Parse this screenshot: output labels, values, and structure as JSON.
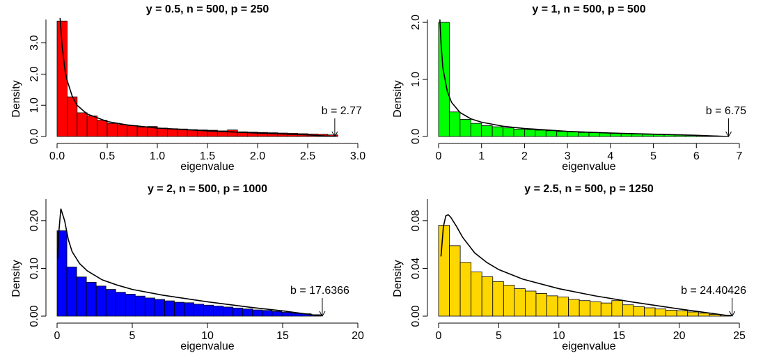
{
  "chart_data": [
    {
      "type": "histogram",
      "title": "y = 0.5, n = 500, p = 250",
      "xlabel": "eigenvalue",
      "ylabel": "Density",
      "color": "#ff0000",
      "bins": [
        0,
        0.1,
        0.2,
        0.3,
        0.4,
        0.5,
        0.6,
        0.7,
        0.8,
        0.9,
        1.0,
        1.1,
        1.2,
        1.3,
        1.4,
        1.5,
        1.6,
        1.7,
        1.8,
        1.9,
        2.0,
        2.1,
        2.2,
        2.3,
        2.4,
        2.5,
        2.6,
        2.7,
        2.8
      ],
      "values": [
        3.7,
        1.27,
        0.76,
        0.66,
        0.52,
        0.42,
        0.38,
        0.35,
        0.3,
        0.32,
        0.27,
        0.25,
        0.24,
        0.22,
        0.21,
        0.2,
        0.18,
        0.21,
        0.15,
        0.14,
        0.13,
        0.12,
        0.11,
        0.1,
        0.09,
        0.08,
        0.07,
        0.05
      ],
      "curve": {
        "x": [
          0.03,
          0.05,
          0.08,
          0.1,
          0.15,
          0.2,
          0.3,
          0.5,
          0.7,
          1.0,
          1.5,
          2.0,
          2.5,
          2.77
        ],
        "values": [
          3.8,
          2.9,
          2.1,
          1.8,
          1.3,
          1.0,
          0.72,
          0.48,
          0.37,
          0.27,
          0.18,
          0.11,
          0.05,
          0.0
        ]
      },
      "annotation": {
        "text": "b = 2.77",
        "x": 2.77
      },
      "xlim": [
        0,
        3
      ],
      "ylim": [
        0,
        3.75
      ],
      "xticks": [
        {
          "value": 0,
          "label": "0.0"
        },
        {
          "value": 0.5,
          "label": "0.5"
        },
        {
          "value": 1,
          "label": "1.0"
        },
        {
          "value": 1.5,
          "label": "1.5"
        },
        {
          "value": 2,
          "label": "2.0"
        },
        {
          "value": 2.5,
          "label": "2.5"
        },
        {
          "value": 3,
          "label": "3.0"
        }
      ],
      "yticks": [
        {
          "value": 0,
          "label": "0.0"
        },
        {
          "value": 1,
          "label": "1.0"
        },
        {
          "value": 2,
          "label": "2.0"
        },
        {
          "value": 3,
          "label": "3.0"
        }
      ]
    },
    {
      "type": "histogram",
      "title": "y = 1, n = 500, p = 500",
      "xlabel": "eigenvalue",
      "ylabel": "Density",
      "color": "#00ff00",
      "bins": [
        0,
        0.25,
        0.5,
        0.75,
        1,
        1.25,
        1.5,
        1.75,
        2,
        2.25,
        2.5,
        2.75,
        3,
        3.25,
        3.5,
        3.75,
        4,
        4.25,
        4.5,
        4.75,
        5,
        5.25,
        5.5,
        5.75,
        6,
        6.25,
        6.5,
        6.75
      ],
      "values": [
        2.0,
        0.43,
        0.3,
        0.23,
        0.19,
        0.17,
        0.15,
        0.13,
        0.12,
        0.11,
        0.1,
        0.09,
        0.08,
        0.07,
        0.065,
        0.06,
        0.055,
        0.05,
        0.045,
        0.04,
        0.035,
        0.03,
        0.025,
        0.02,
        0.015,
        0.01,
        0.005
      ],
      "curve": {
        "x": [
          0.03,
          0.06,
          0.1,
          0.2,
          0.3,
          0.5,
          0.75,
          1,
          1.5,
          2,
          3,
          4,
          5,
          6,
          6.75
        ],
        "values": [
          2.05,
          1.6,
          1.2,
          0.8,
          0.6,
          0.42,
          0.31,
          0.25,
          0.18,
          0.14,
          0.09,
          0.06,
          0.04,
          0.02,
          0.0
        ]
      },
      "annotation": {
        "text": "b = 6.75",
        "x": 6.75
      },
      "xlim": [
        0,
        7
      ],
      "ylim": [
        0,
        2.05
      ],
      "xticks": [
        0,
        1,
        2,
        3,
        4,
        5,
        6,
        7
      ],
      "yticks": [
        {
          "value": 0,
          "label": "0.0"
        },
        {
          "value": 1,
          "label": "1.0"
        },
        {
          "value": 2,
          "label": "2.0"
        }
      ]
    },
    {
      "type": "histogram",
      "title": "y = 2, n = 500, p = 1000",
      "xlabel": "eigenvalue",
      "ylabel": "Density",
      "color": "#0000ff",
      "bins": [
        0,
        0.65,
        1.3,
        1.95,
        2.6,
        3.25,
        3.9,
        4.55,
        5.2,
        5.85,
        6.5,
        7.15,
        7.8,
        8.45,
        9.1,
        9.75,
        10.4,
        11.05,
        11.7,
        12.35,
        13,
        13.65,
        14.3,
        14.95,
        15.6,
        16.25,
        16.9,
        17.55
      ],
      "values": [
        0.179,
        0.103,
        0.082,
        0.071,
        0.063,
        0.056,
        0.05,
        0.046,
        0.042,
        0.038,
        0.035,
        0.032,
        0.029,
        0.028,
        0.025,
        0.023,
        0.021,
        0.019,
        0.017,
        0.015,
        0.013,
        0.012,
        0.01,
        0.008,
        0.006,
        0.005,
        0.003
      ],
      "curve": {
        "x": [
          0.05,
          0.1,
          0.25,
          0.5,
          0.75,
          1,
          1.5,
          2,
          3,
          4,
          5,
          7,
          10,
          13,
          15,
          17.64
        ],
        "values": [
          0.12,
          0.17,
          0.225,
          0.2,
          0.16,
          0.135,
          0.11,
          0.095,
          0.076,
          0.065,
          0.056,
          0.044,
          0.03,
          0.018,
          0.011,
          0.0
        ]
      },
      "annotation": {
        "text": "b = 17.6366",
        "x": 17.6366
      },
      "xlim": [
        0,
        20
      ],
      "ylim": [
        0,
        0.245
      ],
      "xticks": [
        0,
        5,
        10,
        15,
        20
      ],
      "yticks": [
        {
          "value": 0,
          "label": "0.00"
        },
        {
          "value": 0.1,
          "label": "0.10"
        },
        {
          "value": 0.2,
          "label": "0.20"
        }
      ]
    },
    {
      "type": "histogram",
      "title": "y = 2.5, n = 500, p = 1250",
      "xlabel": "eigenvalue",
      "ylabel": "Density",
      "color": "#ffd700",
      "bins": [
        0,
        0.9,
        1.8,
        2.7,
        3.6,
        4.5,
        5.4,
        6.3,
        7.2,
        8.1,
        9,
        9.9,
        10.8,
        11.7,
        12.6,
        13.5,
        14.4,
        15.3,
        16.2,
        17.1,
        18,
        18.9,
        19.8,
        20.7,
        21.6,
        22.5,
        23.4,
        24.3
      ],
      "values": [
        0.076,
        0.059,
        0.045,
        0.037,
        0.033,
        0.029,
        0.026,
        0.023,
        0.021,
        0.019,
        0.017,
        0.016,
        0.014,
        0.013,
        0.012,
        0.011,
        0.013,
        0.0095,
        0.008,
        0.007,
        0.006,
        0.005,
        0.0045,
        0.0035,
        0.0025,
        0.0015,
        0.0008
      ],
      "curve": {
        "x": [
          0.2,
          0.4,
          0.6,
          0.8,
          1,
          1.5,
          2,
          3,
          4,
          5,
          7,
          10,
          13,
          16,
          20,
          24.4
        ],
        "values": [
          0.05,
          0.075,
          0.084,
          0.085,
          0.083,
          0.075,
          0.066,
          0.053,
          0.045,
          0.039,
          0.031,
          0.023,
          0.017,
          0.012,
          0.006,
          0.0
        ]
      },
      "annotation": {
        "text": "b = 24.40426",
        "x": 24.40426
      },
      "xlim": [
        0,
        25
      ],
      "ylim": [
        0,
        0.098
      ],
      "xticks": [
        0,
        5,
        10,
        15,
        20,
        25
      ],
      "yticks": [
        {
          "value": 0,
          "label": "0.00"
        },
        {
          "value": 0.04,
          "label": "0.04"
        },
        {
          "value": 0.08,
          "label": "0.08"
        }
      ]
    }
  ]
}
